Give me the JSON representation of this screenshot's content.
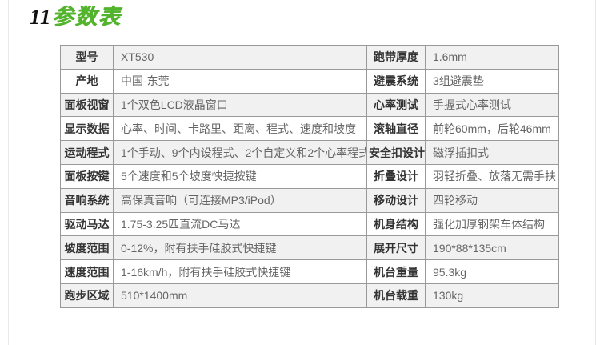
{
  "title": {
    "number": "11",
    "name": "参数表"
  },
  "colors": {
    "accent_green": "#52b32c",
    "row_shade": "#f1f1f1",
    "table_border": "#999999",
    "label_text": "#333333",
    "value_text": "#666666",
    "page_edge": "#e8e8e8"
  },
  "table": {
    "rows": [
      {
        "label1": "型号",
        "value1": "XT530",
        "label2": "跑带厚度",
        "value2": "1.6mm"
      },
      {
        "label1": "产地",
        "value1": "中国-东莞",
        "label2": "避震系统",
        "value2": "3组避震垫"
      },
      {
        "label1": "面板视窗",
        "value1": "1个双色LCD液晶窗口",
        "label2": "心率测试",
        "value2": "手握式心率测试"
      },
      {
        "label1": "显示数据",
        "value1": "心率、时间、卡路里、距离、程式、速度和坡度",
        "label2": "滚轴直径",
        "value2": "前轮60mm，后轮46mm"
      },
      {
        "label1": "运动程式",
        "value1": "1个手动、9个内设程式、2个自定义和2个心率程式",
        "label2": "安全扣设计",
        "value2": "磁浮插扣式"
      },
      {
        "label1": "面板按键",
        "value1": "5个速度和5个坡度快捷按键",
        "label2": "折叠设计",
        "value2": "羽轻折叠、放落无需手扶"
      },
      {
        "label1": "音响系统",
        "value1": "高保真音响（可连接MP3/iPod）",
        "label2": "移动设计",
        "value2": "四轮移动"
      },
      {
        "label1": "驱动马达",
        "value1": "1.75-3.25匹直流DC马达",
        "label2": "机身结构",
        "value2": "强化加厚钢架车体结构"
      },
      {
        "label1": "坡度范围",
        "value1": "0-12%，附有扶手硅胶式快捷键",
        "label2": "展开尺寸",
        "value2": "190*88*135cm"
      },
      {
        "label1": "速度范围",
        "value1": "1-16km/h，附有扶手硅胶式快捷键",
        "label2": "机台重量",
        "value2": "95.3kg"
      },
      {
        "label1": "跑步区域",
        "value1": "510*1400mm",
        "label2": "机台载重",
        "value2": "130kg"
      }
    ]
  }
}
